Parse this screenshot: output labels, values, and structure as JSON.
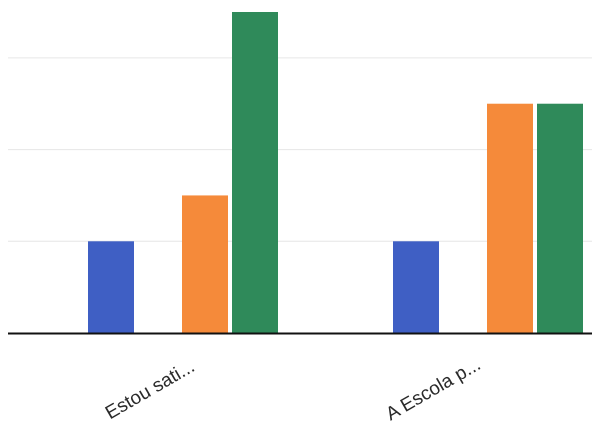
{
  "chart_data": {
    "type": "bar",
    "title": "",
    "xlabel": "",
    "ylabel": "",
    "categories": [
      "Estou sati...",
      "A Escola p..."
    ],
    "series": [
      {
        "color": "#3f5fc4",
        "values": [
          1,
          1
        ]
      },
      {
        "color": "#f58a3a",
        "values": [
          1.5,
          2.5
        ]
      },
      {
        "color": "#2f8a5a",
        "values": [
          3.5,
          2.5
        ]
      }
    ],
    "ylim": [
      0,
      3.5
    ],
    "grid": true,
    "legend": "none"
  }
}
